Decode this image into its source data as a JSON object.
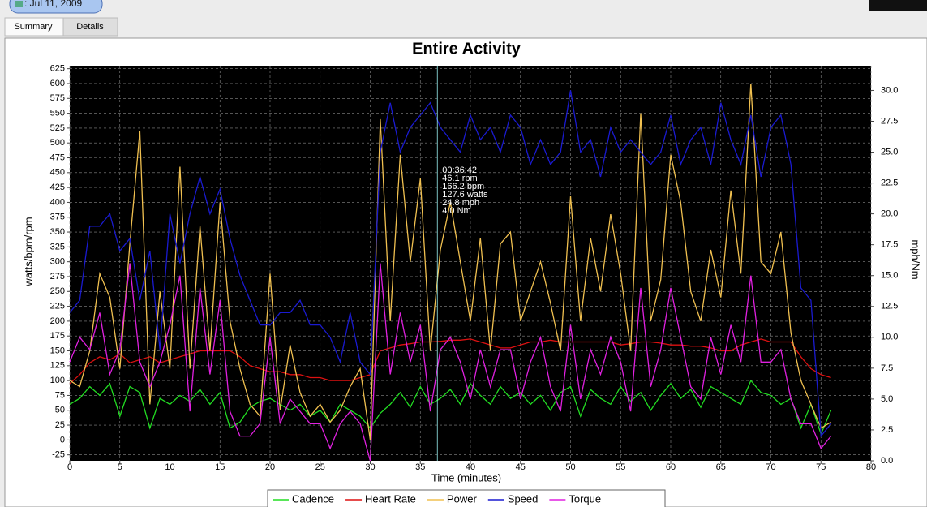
{
  "ui": {
    "date_button": ": Jul 11, 2009",
    "tabs": [
      "Summary",
      "Details"
    ]
  },
  "chart_data": {
    "type": "line",
    "title": "Entire Activity",
    "x_label": "Time (minutes)",
    "y_label": "watts/bpm/rpm",
    "y2_label": "mph/Nm",
    "xlim": [
      0,
      80
    ],
    "xticks": [
      0,
      5,
      10,
      15,
      20,
      25,
      30,
      35,
      40,
      45,
      50,
      55,
      60,
      65,
      70,
      75,
      80
    ],
    "ylim": [
      -35,
      630
    ],
    "yticks": [
      -25,
      0,
      25,
      50,
      75,
      100,
      125,
      150,
      175,
      200,
      225,
      250,
      275,
      300,
      325,
      350,
      375,
      400,
      425,
      450,
      475,
      500,
      525,
      550,
      575,
      600,
      625
    ],
    "y2lim": [
      0,
      32
    ],
    "y2ticks": [
      {
        "value": 0,
        "label": "0.0"
      },
      2.5,
      {
        "value": 5,
        "label": "5.0"
      },
      7.5,
      {
        "value": 10,
        "label": "10.0"
      },
      12.5,
      {
        "value": 15,
        "label": "15.0"
      },
      17.5,
      {
        "value": 20,
        "label": "20.0"
      },
      22.5,
      {
        "value": 25,
        "label": "25.0"
      },
      27.5,
      {
        "value": 30,
        "label": "30.0"
      }
    ],
    "grid": true,
    "legend": "bottom",
    "crosshair_x": 36.7,
    "annotation": [
      "00:36:42",
      "46.1 rpm",
      "166.2 bpm",
      "127.6 watts",
      "24.8 mph",
      "4.0 Nm"
    ],
    "x": [
      0,
      1,
      2,
      3,
      4,
      5,
      6,
      7,
      8,
      9,
      10,
      11,
      12,
      13,
      14,
      15,
      16,
      17,
      18,
      19,
      20,
      21,
      22,
      23,
      24,
      25,
      26,
      27,
      28,
      29,
      30,
      31,
      32,
      33,
      34,
      35,
      36,
      37,
      38,
      39,
      40,
      41,
      42,
      43,
      44,
      45,
      46,
      47,
      48,
      49,
      50,
      51,
      52,
      53,
      54,
      55,
      56,
      57,
      58,
      59,
      60,
      61,
      62,
      63,
      64,
      65,
      66,
      67,
      68,
      69,
      70,
      71,
      72,
      73,
      74,
      75,
      76
    ],
    "series": [
      {
        "name": "Cadence",
        "color": "#22dd22",
        "values": [
          60,
          70,
          90,
          75,
          95,
          40,
          90,
          80,
          20,
          70,
          60,
          75,
          65,
          85,
          60,
          80,
          20,
          30,
          55,
          65,
          70,
          60,
          50,
          60,
          40,
          50,
          30,
          60,
          50,
          40,
          20,
          45,
          60,
          80,
          55,
          90,
          60,
          70,
          85,
          60,
          95,
          75,
          60,
          90,
          70,
          80,
          60,
          75,
          50,
          80,
          90,
          40,
          85,
          70,
          60,
          90,
          65,
          80,
          50,
          75,
          95,
          70,
          85,
          55,
          90,
          80,
          70,
          60,
          100,
          80,
          75,
          60,
          70,
          20,
          60,
          10,
          50
        ]
      },
      {
        "name": "Heart Rate",
        "color": "#dd1111",
        "values": [
          95,
          110,
          130,
          140,
          135,
          145,
          130,
          135,
          140,
          130,
          135,
          140,
          145,
          150,
          150,
          150,
          150,
          140,
          125,
          120,
          115,
          115,
          110,
          110,
          105,
          105,
          100,
          100,
          100,
          105,
          110,
          150,
          155,
          160,
          162,
          165,
          165,
          166,
          168,
          168,
          170,
          165,
          160,
          155,
          155,
          160,
          165,
          165,
          168,
          165,
          165,
          165,
          165,
          165,
          165,
          160,
          162,
          165,
          165,
          163,
          160,
          160,
          158,
          158,
          155,
          150,
          150,
          160,
          165,
          170,
          165,
          165,
          165,
          140,
          120,
          110,
          105
        ]
      },
      {
        "name": "Power",
        "color": "#f0c050",
        "values": [
          100,
          90,
          150,
          280,
          240,
          120,
          330,
          520,
          60,
          250,
          120,
          460,
          120,
          360,
          150,
          400,
          200,
          120,
          60,
          40,
          280,
          50,
          160,
          80,
          40,
          60,
          30,
          50,
          90,
          120,
          0,
          540,
          200,
          480,
          300,
          440,
          150,
          320,
          400,
          300,
          200,
          340,
          150,
          330,
          350,
          200,
          250,
          300,
          230,
          150,
          410,
          200,
          340,
          250,
          380,
          280,
          150,
          550,
          200,
          270,
          480,
          400,
          250,
          200,
          320,
          240,
          420,
          280,
          600,
          300,
          280,
          350,
          180,
          100,
          60,
          20,
          30
        ]
      },
      {
        "name": "Speed",
        "color": "#1a1ad0",
        "axis": "y2",
        "values": [
          12,
          13,
          19,
          19,
          20,
          17,
          18,
          13,
          17,
          9,
          20,
          16,
          20,
          23,
          20,
          22,
          18,
          15,
          13,
          11,
          11,
          12,
          12,
          13,
          11,
          11,
          10,
          8,
          12,
          8,
          7,
          25,
          29,
          25,
          27,
          28,
          29,
          27,
          26,
          25,
          28,
          26,
          27,
          25,
          28,
          27,
          24,
          26,
          24,
          25,
          30,
          25,
          26,
          23,
          27,
          25,
          26,
          25,
          24,
          25,
          28,
          24,
          26,
          27,
          24,
          29,
          26,
          24,
          28,
          23,
          27,
          28,
          24,
          14,
          13,
          2,
          3
        ]
      },
      {
        "name": "Torque",
        "color": "#e020e0",
        "axis": "y2",
        "values": [
          8,
          10,
          9,
          12,
          7,
          9,
          16,
          8,
          6,
          8,
          11,
          15,
          4,
          14,
          7,
          13,
          4,
          2,
          2,
          3,
          10,
          3,
          5,
          4,
          3,
          3,
          1,
          3,
          4,
          3,
          0,
          16,
          7,
          12,
          8,
          11,
          4,
          9,
          10,
          8,
          5,
          9,
          6,
          9,
          9,
          5,
          8,
          10,
          6,
          4,
          11,
          5,
          9,
          7,
          10,
          8,
          4,
          14,
          6,
          9,
          14,
          10,
          6,
          5,
          10,
          7,
          11,
          8,
          15,
          8,
          8,
          9,
          5,
          3,
          3,
          1,
          2
        ]
      }
    ]
  }
}
